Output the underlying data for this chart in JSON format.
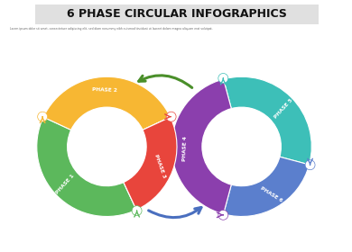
{
  "title": "6 PHASE CIRCULAR INFOGRAPHICS",
  "subtitle": "Lorem ipsum dolor sit amet, consectetuer adipiscing elit, sed diam nonummy nibh euismod tincidunt ut laoreet dolore magna aliquam erat volutpat.",
  "phases": [
    "PHASE 1",
    "PHASE 2",
    "PHASE 3",
    "PHASE 4",
    "PHASE 5",
    "PHASE 6"
  ],
  "colors": {
    "phase1": "#5cb85c",
    "phase1b": "#8dc63f",
    "phase2": "#f7b733",
    "phase2b": "#f0a500",
    "phase3": "#e8453c",
    "phase3b": "#f7604a",
    "phase4": "#8b3fad",
    "phase4b": "#6a0dad",
    "phase5": "#3dbfb8",
    "phase5b": "#2eada6",
    "phase6": "#5b7fcd",
    "phase6b": "#4466bb"
  },
  "background": "#ffffff",
  "title_bg": "#e0e0e0",
  "arrow_left_color": "#4a8f2a",
  "arrow_right_color": "#4a6fbf",
  "white": "#ffffff"
}
